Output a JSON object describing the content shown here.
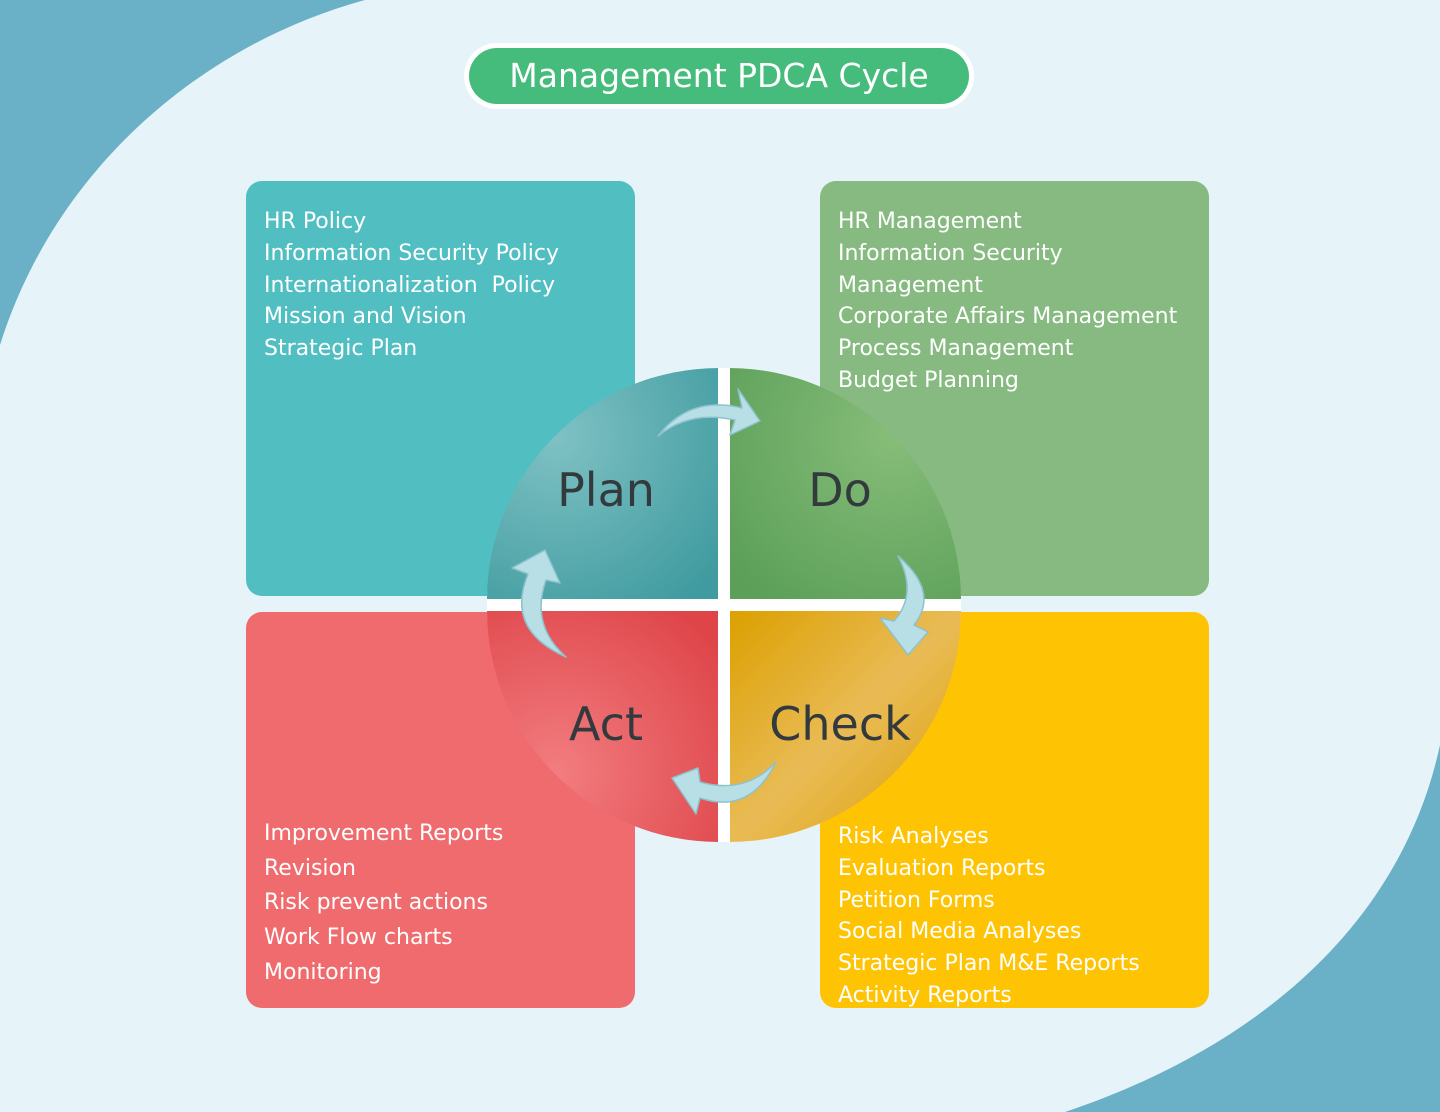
{
  "title": "Management PDCA Cycle",
  "colors": {
    "background": "#e6f4fa",
    "corner_wave": "#6ab1c8",
    "title_pill": "#45bc7c",
    "plan": "#51bfc2",
    "do": "#86ba81",
    "act": "#ef6b6d",
    "check": "#fec303",
    "arrow": "#b8dfe6"
  },
  "quadrants": {
    "plan": {
      "label": "Plan",
      "items": [
        "HR Policy",
        "Information Security Policy",
        "Internationalization  Policy",
        "Mission and Vision",
        "Strategic Plan"
      ]
    },
    "do": {
      "label": "Do",
      "items": [
        "HR Management",
        "Information Security",
        "Management",
        "Corporate Affairs Management",
        "Process Management",
        "Budget Planning"
      ]
    },
    "act": {
      "label": "Act",
      "items": [
        "Improvement Reports",
        "Revision",
        "Risk prevent actions",
        "Work Flow charts",
        "Monitoring"
      ]
    },
    "check": {
      "label": "Check",
      "items": [
        "Risk Analyses",
        "Evaluation Reports",
        "Petition Forms",
        "Social Media Analyses",
        "Strategic Plan M&E Reports",
        "Activity Reports"
      ]
    }
  }
}
